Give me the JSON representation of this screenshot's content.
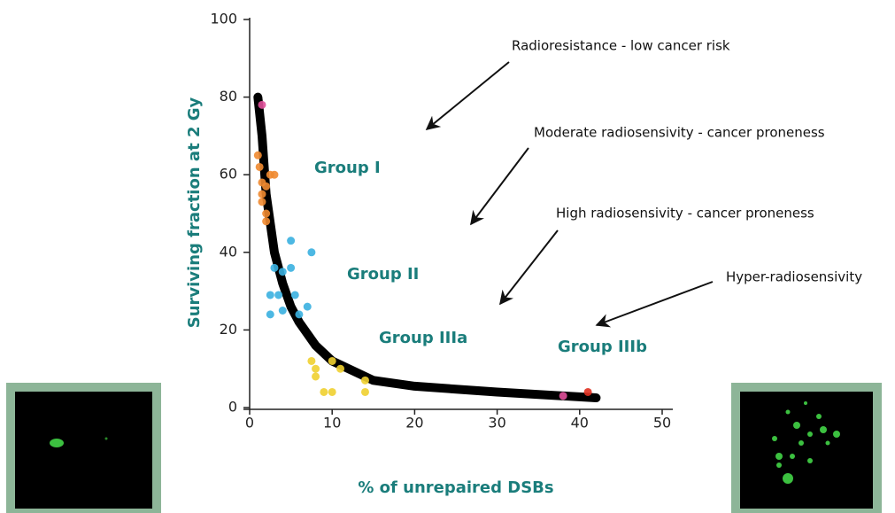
{
  "chart_data": {
    "type": "scatter",
    "xlabel": "% of unrepaired DSBs",
    "ylabel": "Surviving fraction at 2 Gy",
    "xlim": [
      0,
      50
    ],
    "ylim": [
      0,
      100
    ],
    "xticks": [
      0,
      10,
      20,
      30,
      40,
      50
    ],
    "yticks": [
      0,
      20,
      40,
      60,
      80,
      100
    ],
    "fit": {
      "color": "#000000",
      "x": [
        1,
        1.5,
        2,
        3,
        4,
        5,
        6,
        8,
        10,
        15,
        20,
        30,
        42
      ],
      "values": [
        80,
        70,
        55,
        40,
        32,
        26,
        22,
        16,
        12,
        7,
        5.5,
        4,
        2.5
      ]
    },
    "series": [
      {
        "color": "#e0509a",
        "x": [
          1.5,
          38
        ],
        "values": [
          78,
          3
        ]
      },
      {
        "color": "#f08a30",
        "x": [
          1,
          1.2,
          1.5,
          2,
          1.5,
          2,
          2.5,
          3,
          1.5,
          2
        ],
        "values": [
          65,
          62,
          58,
          57,
          53,
          50,
          60,
          60,
          55,
          48
        ]
      },
      {
        "color": "#3ab0e0",
        "x": [
          5,
          7.5,
          3,
          4,
          5,
          2.5,
          3.5,
          5.5,
          2.5,
          4,
          6,
          7
        ],
        "values": [
          43,
          40,
          36,
          35,
          36,
          29,
          29,
          29,
          24,
          25,
          24,
          26
        ]
      },
      {
        "color": "#f0d030",
        "x": [
          7.5,
          8,
          10,
          11,
          9,
          10,
          14,
          14,
          8
        ],
        "values": [
          12,
          10,
          12,
          10,
          4,
          4,
          4,
          7,
          8
        ]
      },
      {
        "color": "#e03020",
        "x": [
          41
        ],
        "values": [
          4
        ]
      }
    ],
    "annotations": [
      "Radioresistance - low cancer risk",
      "Moderate radiosensivity - cancer proneness",
      "High radiosensivity - cancer proneness",
      "Hyper-radiosensivity"
    ],
    "groups": [
      "Group I",
      "Group II",
      "Group IIIa",
      "Group IIIb"
    ]
  }
}
